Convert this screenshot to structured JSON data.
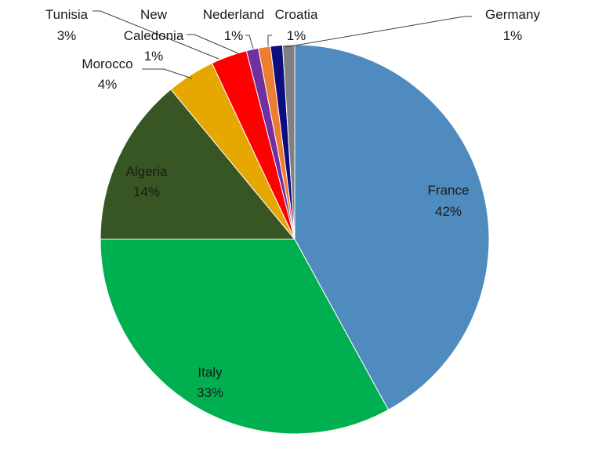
{
  "chart_data": {
    "type": "pie",
    "title": "",
    "legend": "none",
    "categories": [
      "France",
      "Italy",
      "Algeria",
      "Morocco",
      "Tunisia",
      "New Caledonia",
      "Nederland",
      "Croatia",
      "Germany"
    ],
    "values": [
      42,
      33,
      14,
      4,
      3,
      1,
      1,
      1,
      1
    ],
    "label_text": [
      [
        "France",
        "42%"
      ],
      [
        "Italy",
        "33%"
      ],
      [
        "Algeria",
        "14%"
      ],
      [
        "Morocco",
        "4%"
      ],
      [
        "Tunisia",
        "3%"
      ],
      [
        "New",
        "Caledonia",
        "1%"
      ],
      [
        "Nederland",
        "1%"
      ],
      [
        "Croatia",
        "1%"
      ],
      [
        "Germany",
        "1%"
      ]
    ],
    "colors": [
      "#4f8bbf",
      "#00b050",
      "#375623",
      "#e6a800",
      "#ff0000",
      "#7030a0",
      "#ed7d31",
      "#0d0d80",
      "#808080"
    ]
  }
}
